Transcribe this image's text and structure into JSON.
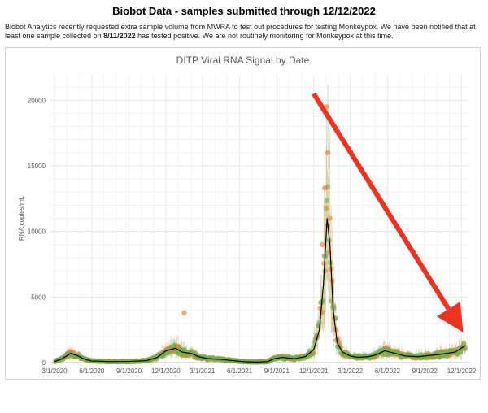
{
  "header": {
    "title": "Biobot Data - samples submitted through 12/12/2022"
  },
  "notice": {
    "part1": "Biobot Analytics recently requested extra sample volume from MWRA to test out procedures for testing Monkeypox. We have been notified that at least one sample collected on ",
    "date": "8/11/2022",
    "part2": " has tested positive. We are not routinely monitoring for Monkeypox at this time."
  },
  "chart_data": {
    "type": "scatter",
    "title": "DITP Viral RNA Signal by Date",
    "xlabel": "",
    "ylabel": "RNA copies/mL",
    "ylim": [
      0,
      22000
    ],
    "xlim": [
      "2020-02-20",
      "2022-12-20"
    ],
    "grid": true,
    "x_ticks": [
      "3/1/2020",
      "6/1/2020",
      "9/1/2020",
      "12/1/2020",
      "3/1/2021",
      "6/1/2021",
      "9/1/2021",
      "12/1/2021",
      "3/1/2022",
      "6/1/2022",
      "9/1/2022",
      "12/1/2022"
    ],
    "x_tick_dates": [
      "2020-03-01",
      "2020-06-01",
      "2020-09-01",
      "2020-12-01",
      "2021-03-01",
      "2021-06-01",
      "2021-09-01",
      "2021-12-01",
      "2022-03-01",
      "2022-06-01",
      "2022-09-01",
      "2022-12-01"
    ],
    "y_ticks": [
      0,
      5000,
      10000,
      15000,
      20000
    ],
    "series_colors": {
      "north": "#ed7d31",
      "south": "#70ad47",
      "trend": "#000000"
    },
    "trend": {
      "x": [
        "2020-03-01",
        "2020-03-20",
        "2020-04-10",
        "2020-04-25",
        "2020-05-15",
        "2020-06-01",
        "2020-07-15",
        "2020-09-01",
        "2020-10-15",
        "2020-11-10",
        "2020-12-01",
        "2020-12-25",
        "2021-01-10",
        "2021-02-01",
        "2021-02-20",
        "2021-03-15",
        "2021-04-15",
        "2021-05-15",
        "2021-06-15",
        "2021-07-15",
        "2021-08-10",
        "2021-08-25",
        "2021-09-15",
        "2021-10-15",
        "2021-11-10",
        "2021-12-01",
        "2021-12-15",
        "2021-12-25",
        "2022-01-03",
        "2022-01-10",
        "2022-01-18",
        "2022-01-28",
        "2022-02-10",
        "2022-03-01",
        "2022-03-20",
        "2022-04-15",
        "2022-05-05",
        "2022-05-25",
        "2022-06-20",
        "2022-07-15",
        "2022-08-15",
        "2022-09-15",
        "2022-10-15",
        "2022-11-15",
        "2022-12-10"
      ],
      "y": [
        80,
        300,
        700,
        550,
        250,
        120,
        80,
        90,
        150,
        400,
        900,
        1100,
        800,
        700,
        450,
        300,
        250,
        150,
        60,
        40,
        80,
        300,
        400,
        300,
        450,
        1000,
        2500,
        6000,
        11000,
        9000,
        4000,
        1500,
        800,
        500,
        400,
        450,
        600,
        900,
        700,
        500,
        450,
        550,
        650,
        800,
        1300
      ]
    },
    "annotation": {
      "type": "arrow",
      "color": "#ee3322",
      "from": [
        "2021-12-01",
        20500
      ],
      "to": [
        "2022-12-05",
        2300
      ]
    }
  }
}
